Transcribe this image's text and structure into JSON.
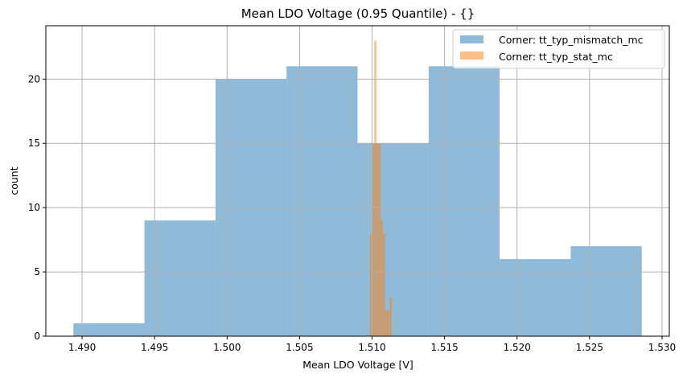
{
  "chart_data": {
    "type": "bar",
    "subtype": "histogram",
    "title": "Mean LDO Voltage (0.95 Quantile) - {}",
    "xlabel": "Mean LDO Voltage [V]",
    "ylabel": "count",
    "xlim": [
      1.4875,
      1.5305
    ],
    "ylim": [
      0,
      24.15
    ],
    "grid": true,
    "legend_position": "upper right",
    "xticks": [
      "1.490",
      "1.495",
      "1.500",
      "1.505",
      "1.510",
      "1.515",
      "1.520",
      "1.525",
      "1.530"
    ],
    "xtick_values": [
      1.49,
      1.495,
      1.5,
      1.505,
      1.51,
      1.515,
      1.52,
      1.525,
      1.53
    ],
    "yticks": [
      "0",
      "5",
      "10",
      "15",
      "20"
    ],
    "ytick_values": [
      0,
      5,
      10,
      15,
      20
    ],
    "series": [
      {
        "name": "Corner: tt_typ_mismatch_mc",
        "color": "#1f77b4",
        "alpha": 0.5,
        "bin_edges": [
          1.4894,
          1.4943,
          1.4992,
          1.5041,
          1.509,
          1.5139,
          1.5188,
          1.5237,
          1.5286
        ],
        "values": [
          1,
          9,
          20,
          21,
          15,
          21,
          6,
          7
        ]
      },
      {
        "name": "Corner: tt_typ_stat_mc",
        "color": "#ff7f0e",
        "alpha": 0.5,
        "bin_edges": [
          1.50985,
          1.51,
          1.51015,
          1.5103,
          1.51045,
          1.5106,
          1.51075,
          1.5109,
          1.51105,
          1.5112,
          1.51135
        ],
        "values": [
          8,
          15,
          23,
          15,
          15,
          9,
          8,
          2,
          2,
          3
        ]
      }
    ]
  }
}
